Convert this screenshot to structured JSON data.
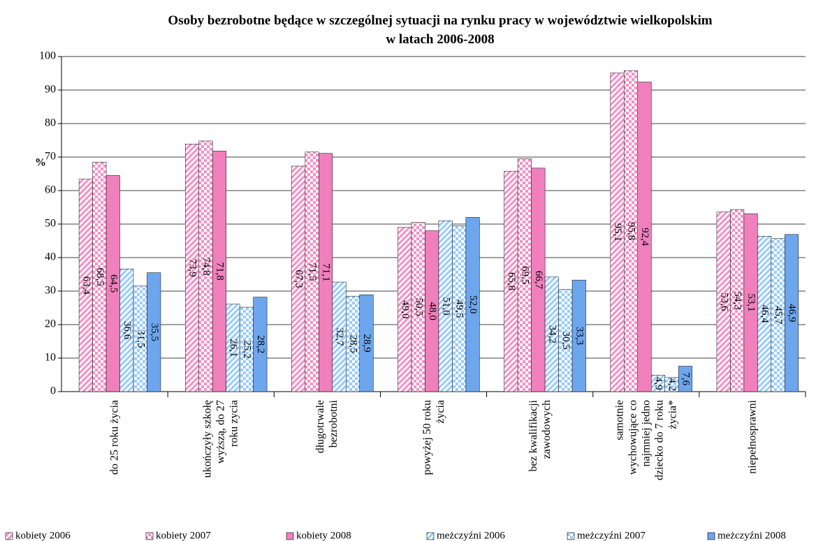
{
  "chart_data": {
    "type": "bar",
    "title": "Osoby bezrobotne będące w szczególnej sytuacji na rynku pracy w województwie wielkopolskim\nw latach 2006-2008",
    "y_label": "%",
    "categories": [
      "do 25 roku życia",
      "ukończyły szkołę\nwyższą, do 27\nroku zycia",
      "długotrwale\nbezrobotni",
      "powyżej 50 roku\nżycia",
      "bez kwalifikacji\nzawodowych",
      "samotnie\nwychowujące co\nnajmniej jedno\ndziecko do 7 roku\nżycia*",
      "niepełnosprawni"
    ],
    "series": [
      {
        "name": "kobiety 2006",
        "color": "#f590c8",
        "pattern": "stripes",
        "values": [
          63.4,
          73.9,
          67.3,
          49.0,
          65.8,
          95.1,
          53.6
        ],
        "value_labels": [
          "63,4",
          "73,9",
          "67,3",
          "49,0",
          "65,8",
          "95,1",
          "53,6"
        ]
      },
      {
        "name": "kobiety 2007",
        "color": "#f590c8",
        "pattern": "checks",
        "values": [
          68.5,
          74.8,
          71.5,
          50.5,
          69.5,
          95.8,
          54.3
        ],
        "value_labels": [
          "68,5",
          "74,8",
          "71,5",
          "50,5",
          "69,5",
          "95,8",
          "54,3"
        ]
      },
      {
        "name": "kobiety 2008",
        "color": "#f080bc",
        "pattern": "solid",
        "values": [
          64.5,
          71.8,
          71.1,
          48.0,
          66.7,
          92.4,
          53.1
        ],
        "value_labels": [
          "64,5",
          "71,8",
          "71,1",
          "48,0",
          "66,7",
          "92,4",
          "53,1"
        ]
      },
      {
        "name": "meżczyźni 2006",
        "color": "#99ccff",
        "pattern": "stripes",
        "values": [
          36.6,
          26.1,
          32.7,
          51.0,
          34.2,
          4.9,
          46.4
        ],
        "value_labels": [
          "36,6",
          "26,1",
          "32,7",
          "51,0",
          "34,2",
          "4,9",
          "46,4"
        ]
      },
      {
        "name": "meżczyźni 2007",
        "color": "#99ccff",
        "pattern": "checks",
        "values": [
          31.5,
          25.2,
          28.5,
          49.5,
          30.5,
          4.2,
          45.7
        ],
        "value_labels": [
          "31,5",
          "25,2",
          "28,5",
          "49,5",
          "30,5",
          "4,2",
          "45,7"
        ]
      },
      {
        "name": "meżczyźni 2008",
        "color": "#6ea6ee",
        "pattern": "solid",
        "values": [
          35.5,
          28.2,
          28.9,
          52.0,
          33.3,
          7.6,
          46.9
        ],
        "value_labels": [
          "35,5",
          "28,2",
          "28,9",
          "52,0",
          "33,3",
          "7,6",
          "46,9"
        ]
      }
    ],
    "ylim": [
      0,
      100
    ],
    "yticks": [
      0,
      10,
      20,
      30,
      40,
      50,
      60,
      70,
      80,
      90,
      100
    ],
    "grid": true
  }
}
